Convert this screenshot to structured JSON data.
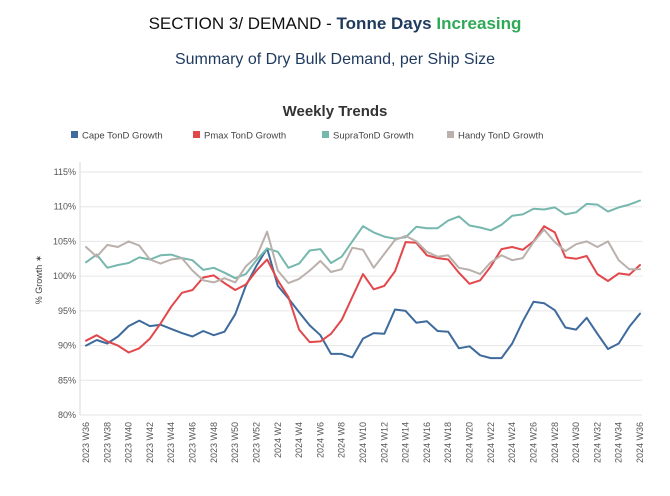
{
  "header": {
    "prefix": "SECTION 3/ DEMAND - ",
    "emph_dark": "Tonne Days",
    "emph_green": "Increasing",
    "subtitle": "Summary of Dry Bulk Demand, per Ship Size"
  },
  "colors": {
    "Cape TonD Growth": "#3e6b9c",
    "Pmax TonD Growth": "#e2474b",
    "SupraTonD Growth": "#76b7ae",
    "Handy TonD Growth": "#bab0ac"
  },
  "chart_data": {
    "type": "line",
    "title": "Weekly Trends",
    "ylabel": "% Growth",
    "ylabel_symbol": "✶",
    "ylim": [
      80,
      115
    ],
    "yticks": [
      "80%",
      "85%",
      "90%",
      "95%",
      "100%",
      "105%",
      "110%",
      "115%"
    ],
    "x_labels": [
      "2023 W36",
      "2023 W38",
      "2023 W40",
      "2023 W42",
      "2023 W44",
      "2023 W46",
      "2023 W48",
      "2023 W50",
      "2023 W52",
      "2024 W2",
      "2024 W4",
      "2024 W6",
      "2024 W8",
      "2024 W10",
      "2024 W12",
      "2024 W14",
      "2024 W16",
      "2024 W18",
      "2024 W20",
      "2024 W22",
      "2024 W24",
      "2024 W26",
      "2024 W28",
      "2024 W30",
      "2024 W32",
      "2024 W34",
      "2024 W36"
    ],
    "legend": [
      "Cape TonD Growth",
      "Pmax TonD Growth",
      "SupraTonD Growth",
      "Handy TonD Growth"
    ],
    "series": [
      {
        "name": "Cape TonD Growth",
        "values": [
          90.0,
          90.8,
          90.3,
          91.3,
          92.8,
          93.6,
          92.8,
          93.0,
          92.4,
          91.8,
          91.3,
          92.1,
          91.5,
          92.0,
          94.5,
          98.6,
          101.5,
          104.0,
          98.6,
          96.8,
          94.8,
          92.9,
          91.5,
          88.8,
          88.8,
          88.3,
          91.0,
          91.8,
          91.7,
          95.2,
          95.0,
          93.3,
          93.5,
          92.1,
          92.0,
          89.6,
          89.9,
          88.6,
          88.2,
          88.2,
          90.3,
          93.5,
          96.3,
          96.1,
          95.1,
          92.6,
          92.3,
          94.0,
          91.7,
          89.5,
          90.3,
          92.7,
          94.6
        ]
      },
      {
        "name": "Pmax TonD Growth",
        "values": [
          90.7,
          91.5,
          90.6,
          90.0,
          89.0,
          89.6,
          91.0,
          93.2,
          95.6,
          97.6,
          98.0,
          99.8,
          100.1,
          99.0,
          98.0,
          98.8,
          100.8,
          102.4,
          99.4,
          97.0,
          92.3,
          90.5,
          90.6,
          91.7,
          93.7,
          97.0,
          100.3,
          98.1,
          98.6,
          100.7,
          104.9,
          104.8,
          103.0,
          102.6,
          102.4,
          100.5,
          98.9,
          99.4,
          101.4,
          103.9,
          104.2,
          103.8,
          105.0,
          107.2,
          106.3,
          102.7,
          102.5,
          102.9,
          100.3,
          99.3,
          100.4,
          100.2,
          101.6
        ]
      },
      {
        "name": "SupraTonD Growth",
        "values": [
          102.0,
          103.1,
          101.2,
          101.6,
          101.9,
          102.7,
          102.4,
          103.0,
          103.1,
          102.6,
          102.3,
          100.9,
          101.2,
          100.5,
          99.7,
          100.3,
          102.3,
          104.0,
          103.5,
          101.2,
          101.8,
          103.7,
          103.9,
          101.9,
          102.8,
          105.0,
          107.2,
          106.3,
          105.7,
          105.4,
          105.6,
          107.1,
          106.9,
          106.9,
          108.0,
          108.6,
          107.3,
          107.0,
          106.6,
          107.4,
          108.7,
          108.9,
          109.7,
          109.6,
          109.9,
          108.9,
          109.2,
          110.4,
          110.3,
          109.3,
          109.9,
          110.3,
          110.9
        ]
      },
      {
        "name": "Handy TonD Growth",
        "values": [
          104.2,
          102.8,
          104.5,
          104.2,
          105.0,
          104.4,
          102.4,
          101.8,
          102.4,
          102.6,
          100.8,
          99.4,
          99.1,
          99.7,
          99.1,
          101.4,
          102.8,
          106.4,
          100.8,
          99.0,
          99.6,
          100.8,
          102.2,
          100.6,
          101.0,
          104.1,
          103.8,
          101.2,
          103.2,
          105.2,
          105.8,
          105.0,
          103.5,
          102.8,
          103.0,
          101.2,
          100.9,
          100.3,
          102.0,
          103.0,
          102.3,
          102.6,
          104.9,
          106.7,
          104.9,
          103.6,
          104.6,
          105.0,
          104.2,
          105.0,
          102.3,
          101.0,
          101.0
        ]
      }
    ]
  }
}
